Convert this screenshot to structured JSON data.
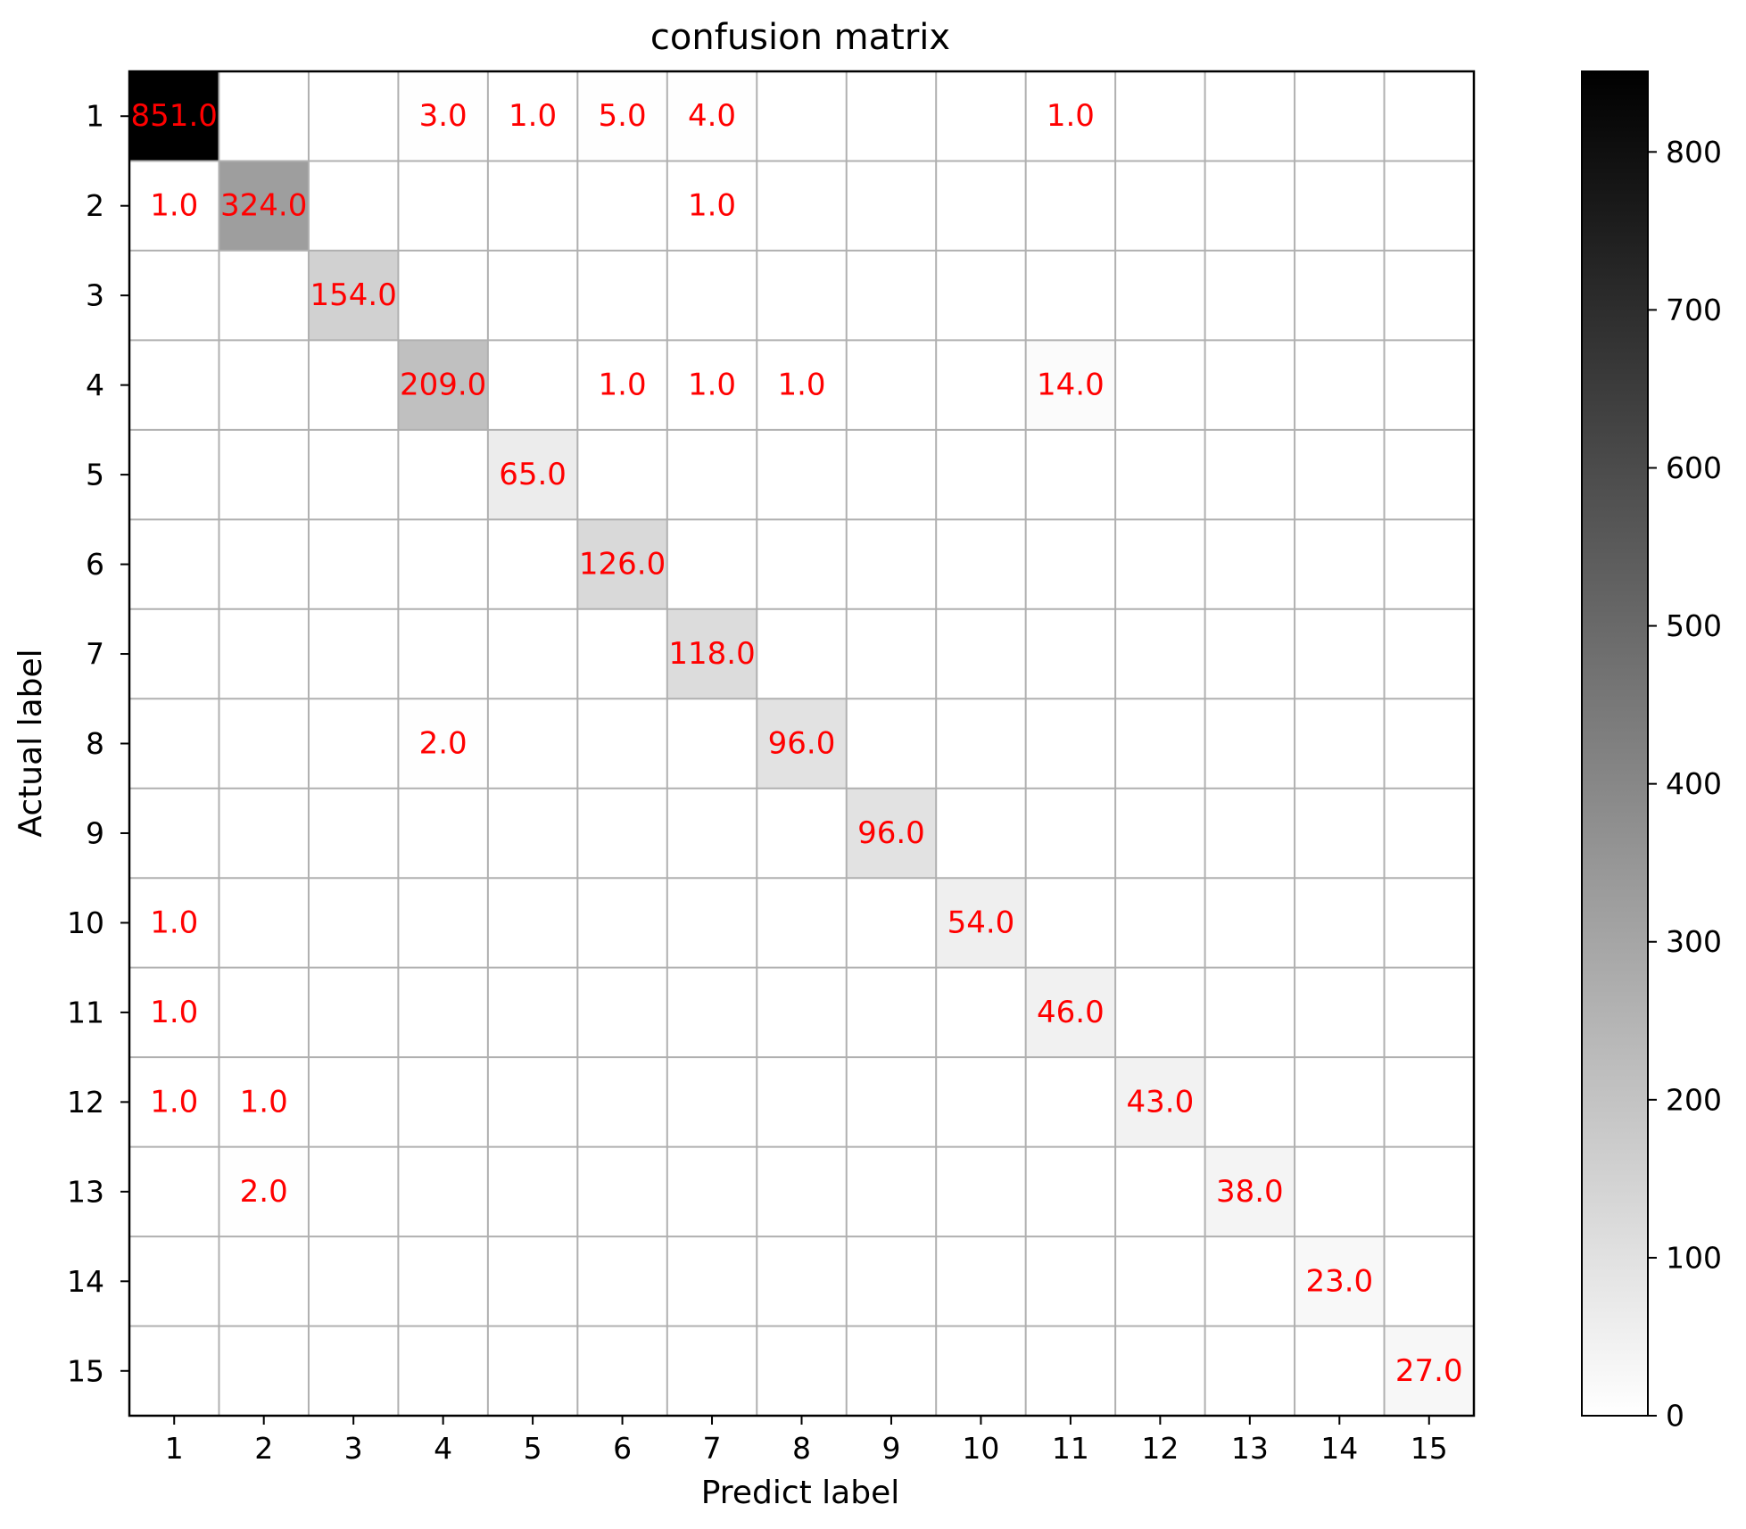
{
  "chart_data": {
    "type": "heatmap",
    "title": "confusion matrix",
    "xlabel": "Predict label",
    "ylabel": "Actual label",
    "x_categories": [
      "1",
      "2",
      "3",
      "4",
      "5",
      "6",
      "7",
      "8",
      "9",
      "10",
      "11",
      "12",
      "13",
      "14",
      "15"
    ],
    "y_categories": [
      "1",
      "2",
      "3",
      "4",
      "5",
      "6",
      "7",
      "8",
      "9",
      "10",
      "11",
      "12",
      "13",
      "14",
      "15"
    ],
    "matrix": [
      [
        851,
        0,
        0,
        3,
        1,
        5,
        4,
        0,
        0,
        0,
        1,
        0,
        0,
        0,
        0
      ],
      [
        1,
        324,
        0,
        0,
        0,
        0,
        1,
        0,
        0,
        0,
        0,
        0,
        0,
        0,
        0
      ],
      [
        0,
        0,
        154,
        0,
        0,
        0,
        0,
        0,
        0,
        0,
        0,
        0,
        0,
        0,
        0
      ],
      [
        0,
        0,
        0,
        209,
        0,
        1,
        1,
        1,
        0,
        0,
        14,
        0,
        0,
        0,
        0
      ],
      [
        0,
        0,
        0,
        0,
        65,
        0,
        0,
        0,
        0,
        0,
        0,
        0,
        0,
        0,
        0
      ],
      [
        0,
        0,
        0,
        0,
        0,
        126,
        0,
        0,
        0,
        0,
        0,
        0,
        0,
        0,
        0
      ],
      [
        0,
        0,
        0,
        0,
        0,
        0,
        118,
        0,
        0,
        0,
        0,
        0,
        0,
        0,
        0
      ],
      [
        0,
        0,
        0,
        2,
        0,
        0,
        0,
        96,
        0,
        0,
        0,
        0,
        0,
        0,
        0
      ],
      [
        0,
        0,
        0,
        0,
        0,
        0,
        0,
        0,
        96,
        0,
        0,
        0,
        0,
        0,
        0
      ],
      [
        1,
        0,
        0,
        0,
        0,
        0,
        0,
        0,
        0,
        54,
        0,
        0,
        0,
        0,
        0
      ],
      [
        1,
        0,
        0,
        0,
        0,
        0,
        0,
        0,
        0,
        0,
        46,
        0,
        0,
        0,
        0
      ],
      [
        1,
        1,
        0,
        0,
        0,
        0,
        0,
        0,
        0,
        0,
        0,
        43,
        0,
        0,
        0
      ],
      [
        0,
        2,
        0,
        0,
        0,
        0,
        0,
        0,
        0,
        0,
        0,
        0,
        38,
        0,
        0
      ],
      [
        0,
        0,
        0,
        0,
        0,
        0,
        0,
        0,
        0,
        0,
        0,
        0,
        0,
        23,
        0
      ],
      [
        0,
        0,
        0,
        0,
        0,
        0,
        0,
        0,
        0,
        0,
        0,
        0,
        0,
        0,
        27
      ]
    ],
    "cell_label_format": "one_decimal_nonzero_only",
    "colormap": "Greys",
    "color_range": [
      0,
      851
    ],
    "colorbar_ticks": [
      0,
      100,
      200,
      300,
      400,
      500,
      600,
      700,
      800
    ],
    "annotation_color": "#ff0000",
    "gridline_color": "#b0b0b0",
    "grid": true
  }
}
